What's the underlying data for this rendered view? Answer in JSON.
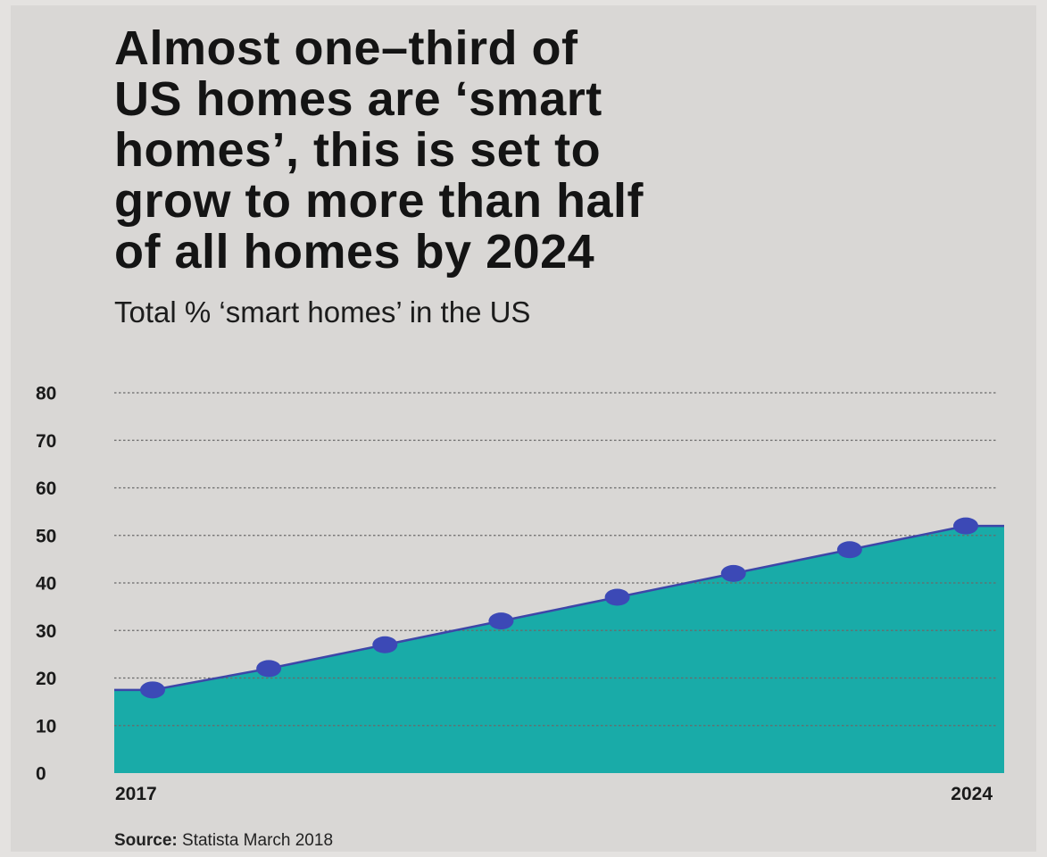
{
  "headline": [
    "Almost one–third of",
    "US homes are ‘smart",
    "homes’, this is set to",
    "grow to more than half",
    "of all homes by 2024"
  ],
  "source": {
    "label": "Source:",
    "text": " Statista March 2018"
  },
  "chart_data": {
    "type": "area",
    "title": "Almost one–third of US homes are ‘smart homes’, this is set to grow to more than half of all homes by 2024",
    "subtitle": "Total % ‘smart homes’ in the US",
    "x": [
      2017,
      2018,
      2019,
      2020,
      2021,
      2022,
      2023,
      2024
    ],
    "x_tick_labels": [
      "2017",
      "2024"
    ],
    "values": [
      17.5,
      22,
      27,
      32,
      37,
      42,
      47,
      52
    ],
    "ylim": [
      0,
      80
    ],
    "y_ticks": [
      0,
      10,
      20,
      30,
      40,
      50,
      60,
      70,
      80
    ],
    "grid": true,
    "colors": {
      "area": "#19aba8",
      "line": "#3d46a8",
      "marker": "#3c49b6",
      "grid": "#6a6a6a",
      "background": "#d9d7d5"
    }
  }
}
